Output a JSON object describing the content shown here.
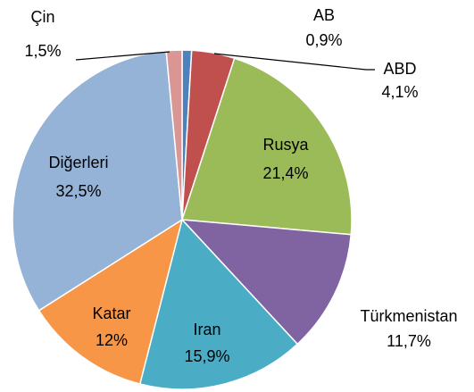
{
  "chart_data": {
    "type": "pie",
    "categories": [
      "AB",
      "ABD",
      "Rusya",
      "Türkmenistan",
      "Iran",
      "Katar",
      "Diğerleri",
      "Çin"
    ],
    "values": [
      0.9,
      4.1,
      21.4,
      11.7,
      15.9,
      12,
      32.5,
      1.5
    ],
    "value_labels": [
      "0,9%",
      "4,1%",
      "21,4%",
      "11,7%",
      "15,9%",
      "12%",
      "32,5%",
      "1,5%"
    ],
    "colors": [
      "#4f81bd",
      "#c0504d",
      "#9bbb59",
      "#8064a2",
      "#4bacc6",
      "#f79646",
      "#95b3d7",
      "#d99694"
    ]
  }
}
